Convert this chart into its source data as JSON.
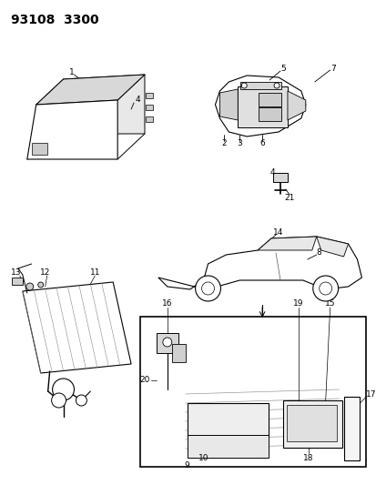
{
  "title": "93108  3300",
  "bg": "#ffffff",
  "fw": 4.14,
  "fh": 5.33,
  "dpi": 100
}
